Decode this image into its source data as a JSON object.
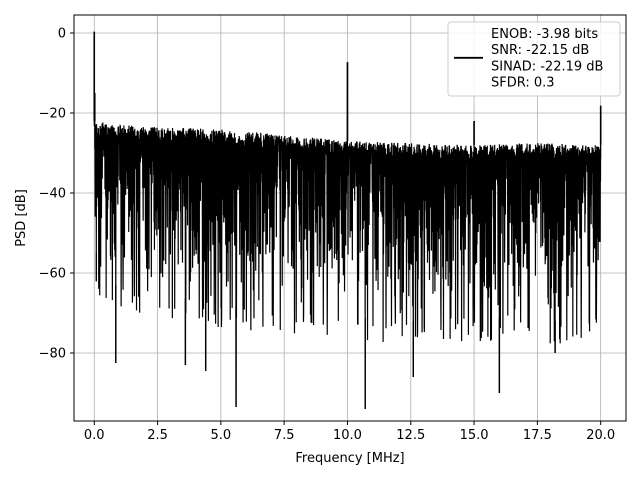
{
  "chart_data": {
    "type": "line",
    "title": "",
    "xlabel": "Frequency [MHz]",
    "ylabel": "PSD [dB]",
    "xlim": [
      -0.8,
      21.0
    ],
    "ylim": [
      -97,
      4.5
    ],
    "xticks": [
      0.0,
      2.5,
      5.0,
      7.5,
      10.0,
      12.5,
      15.0,
      17.5,
      20.0
    ],
    "xtick_labels": [
      "0.0",
      "2.5",
      "5.0",
      "7.5",
      "10.0",
      "12.5",
      "15.0",
      "17.5",
      "20.0"
    ],
    "yticks": [
      0,
      -20,
      -40,
      -60,
      -80
    ],
    "ytick_labels": [
      "0",
      "−20",
      "−40",
      "−60",
      "−80"
    ],
    "grid": true,
    "legend_position": "top-right",
    "series": [
      {
        "name": "ENOB: -3.98 bits\nSNR: -22.15 dB\nSINAD: -22.19 dB\nSFDR: 0.3",
        "color": "#000000",
        "x_range": [
          0,
          20
        ],
        "noise_ceiling": [
          [
            0,
            -22
          ],
          [
            1,
            -23
          ],
          [
            2.5,
            -23.5
          ],
          [
            5,
            -24
          ],
          [
            7.5,
            -25.5
          ],
          [
            10,
            -27
          ],
          [
            12.5,
            -27.5
          ],
          [
            15,
            -28
          ],
          [
            17.5,
            -27.5
          ],
          [
            20,
            -28
          ]
        ],
        "noise_floor": [
          [
            0,
            -62
          ],
          [
            2.5,
            -65
          ],
          [
            5,
            -68
          ],
          [
            7.5,
            -69
          ],
          [
            10,
            -71
          ],
          [
            12.5,
            -72
          ],
          [
            15,
            -71
          ],
          [
            17.5,
            -72
          ],
          [
            20,
            -72
          ]
        ],
        "peaks": [
          {
            "x": 0.0,
            "y": 0.3
          },
          {
            "x": 0.02,
            "y": -15
          },
          {
            "x": 10.0,
            "y": -7.3
          },
          {
            "x": 15.0,
            "y": -22
          },
          {
            "x": 20.0,
            "y": -18.2
          }
        ],
        "dips": [
          {
            "x": 0.08,
            "y": -55
          },
          {
            "x": 0.85,
            "y": -82.5
          },
          {
            "x": 3.6,
            "y": -83
          },
          {
            "x": 4.4,
            "y": -84.5
          },
          {
            "x": 5.6,
            "y": -93.5
          },
          {
            "x": 10.7,
            "y": -94
          },
          {
            "x": 12.6,
            "y": -86
          },
          {
            "x": 16.0,
            "y": -90
          },
          {
            "x": 18.2,
            "y": -80
          }
        ]
      }
    ]
  }
}
